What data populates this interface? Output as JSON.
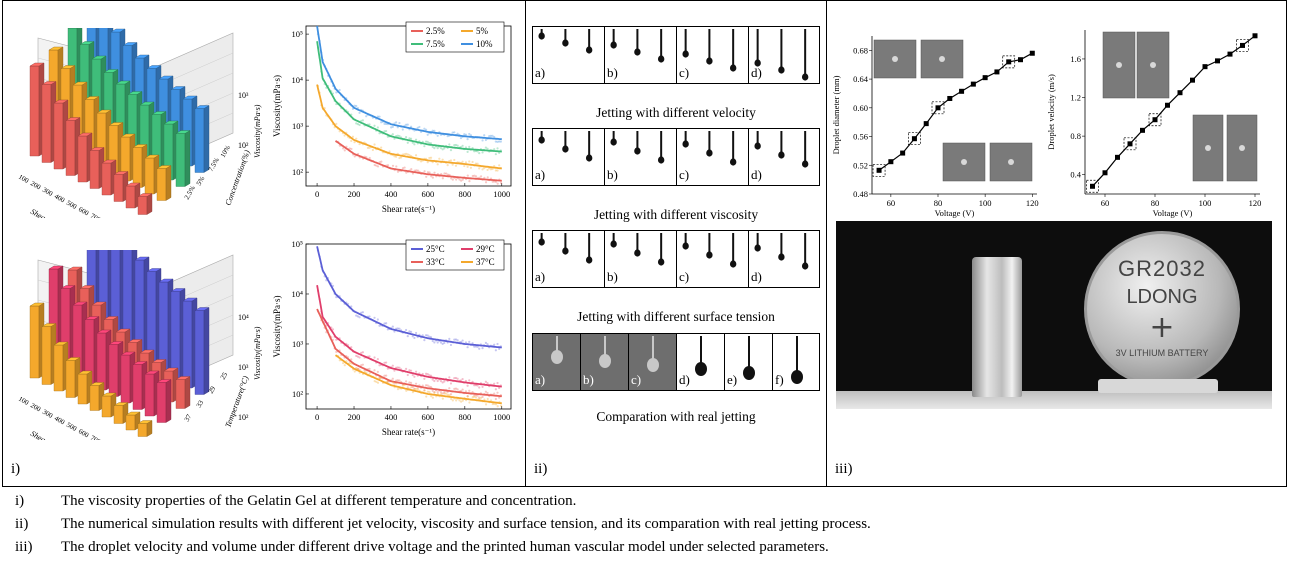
{
  "panels": [
    {
      "label": "i)"
    },
    {
      "label": "ii)"
    },
    {
      "label": "iii)"
    }
  ],
  "bar3d_top": {
    "zlabel": "Viscosity(mPa·s)",
    "ylabel": "Concentration(%)",
    "xlabel": "Shear rate(s⁻¹)",
    "zticks": [
      "10³",
      "10²"
    ],
    "xticks": [
      "100",
      "200",
      "300",
      "400",
      "500",
      "600",
      "700",
      "800",
      "900",
      "1000"
    ],
    "yticks": [
      "2.5%",
      "5%",
      "7.5%",
      "10%"
    ],
    "colors": [
      "#e8605a",
      "#f4a82c",
      "#3fbd7a",
      "#3f8fe0"
    ]
  },
  "bar3d_bottom": {
    "zlabel": "Viscosity(mPa·s)",
    "ylabel": "Temperature(°C)",
    "xlabel": "Shear rate(s⁻¹)",
    "zticks": [
      "10⁴",
      "10³",
      "10²"
    ],
    "xticks": [
      "100",
      "200",
      "300",
      "400",
      "500",
      "600",
      "700",
      "800",
      "900",
      "1000"
    ],
    "yticks": [
      "37",
      "33",
      "29",
      "25"
    ],
    "colors": [
      "#f4a82c",
      "#e03e6b",
      "#e8605a",
      "#5b5fd6"
    ]
  },
  "chart_data": [
    {
      "type": "line",
      "title": "",
      "xlabel": "Shear rate(s⁻¹)",
      "ylabel": "Viscosity(mPa·s)",
      "yscale": "log",
      "xlim": [
        -60,
        1050
      ],
      "ylim": [
        50,
        150000
      ],
      "xticks": [
        0,
        200,
        400,
        600,
        800,
        1000
      ],
      "yticks": [
        "10²",
        "10³",
        "10⁴",
        "10⁵"
      ],
      "legend": "top-right",
      "series": [
        {
          "name": "2.5%",
          "color": "#e8605a",
          "x": [
            100,
            200,
            400,
            600,
            800,
            1000
          ],
          "y": [
            480,
            250,
            120,
            90,
            75,
            65
          ]
        },
        {
          "name": "5%",
          "color": "#f4a82c",
          "x": [
            0,
            30,
            100,
            200,
            400,
            600,
            800,
            1000
          ],
          "y": [
            8000,
            2500,
            1000,
            500,
            250,
            180,
            150,
            120
          ]
        },
        {
          "name": "7.5%",
          "color": "#3fbd7a",
          "x": [
            0,
            30,
            100,
            200,
            400,
            600,
            800,
            1000
          ],
          "y": [
            70000,
            11000,
            3500,
            1400,
            600,
            400,
            320,
            280
          ]
        },
        {
          "name": "10%",
          "color": "#3f8fe0",
          "x": [
            0,
            30,
            100,
            200,
            400,
            600,
            800,
            1000
          ],
          "y": [
            150000,
            25000,
            6500,
            2500,
            1100,
            750,
            600,
            520
          ]
        }
      ]
    },
    {
      "type": "line",
      "title": "",
      "xlabel": "Shear rate(s⁻¹)",
      "ylabel": "Viscosity(mPa·s)",
      "yscale": "log",
      "xlim": [
        -60,
        1050
      ],
      "ylim": [
        50,
        100000
      ],
      "xticks": [
        0,
        200,
        400,
        600,
        800,
        1000
      ],
      "yticks": [
        "10²",
        "10³",
        "10⁴",
        "10⁵"
      ],
      "legend": "top-right",
      "series": [
        {
          "name": "25°C",
          "color": "#5b5fd6",
          "x": [
            0,
            30,
            100,
            200,
            400,
            600,
            800,
            1000
          ],
          "y": [
            90000,
            30000,
            10000,
            4500,
            2000,
            1300,
            1000,
            850
          ]
        },
        {
          "name": "29°C",
          "color": "#e03e6b",
          "x": [
            0,
            30,
            100,
            200,
            400,
            600,
            800,
            1000
          ],
          "y": [
            15000,
            3500,
            1400,
            700,
            330,
            220,
            170,
            140
          ]
        },
        {
          "name": "33°C",
          "color": "#e8605a",
          "x": [
            0,
            100,
            200,
            400,
            600,
            800,
            1000
          ],
          "y": [
            5000,
            800,
            400,
            180,
            130,
            105,
            90
          ]
        },
        {
          "name": "37°C",
          "color": "#f4a82c",
          "x": [
            100,
            200,
            400,
            600,
            800,
            1000
          ],
          "y": [
            600,
            320,
            150,
            100,
            80,
            65
          ]
        }
      ]
    },
    {
      "type": "scatter",
      "title": "",
      "xlabel": "Voltage (V)",
      "ylabel": "Droplet diameter (mm)",
      "xlim": [
        52,
        122
      ],
      "ylim": [
        0.48,
        0.7
      ],
      "xticks": [
        60,
        80,
        100,
        120
      ],
      "yticks": [
        0.48,
        0.52,
        0.56,
        0.6,
        0.64,
        0.68
      ],
      "x": [
        55,
        60,
        65,
        70,
        75,
        80,
        85,
        90,
        95,
        100,
        105,
        110,
        115,
        120
      ],
      "y": [
        0.513,
        0.525,
        0.537,
        0.557,
        0.578,
        0.6,
        0.613,
        0.623,
        0.633,
        0.642,
        0.65,
        0.664,
        0.667,
        0.676
      ],
      "fit": true
    },
    {
      "type": "scatter",
      "title": "",
      "xlabel": "Voltage (V)",
      "ylabel": "Droplet velocity (m/s)",
      "xlim": [
        52,
        122
      ],
      "ylim": [
        0.2,
        1.9
      ],
      "xticks": [
        60,
        80,
        100,
        120
      ],
      "yticks": [
        0.4,
        0.8,
        1.2,
        1.6
      ],
      "x": [
        55,
        60,
        65,
        70,
        75,
        80,
        85,
        90,
        95,
        100,
        105,
        110,
        115,
        120
      ],
      "y": [
        0.28,
        0.42,
        0.58,
        0.72,
        0.86,
        0.97,
        1.12,
        1.25,
        1.38,
        1.52,
        1.58,
        1.65,
        1.74,
        1.84
      ],
      "fit": true
    }
  ],
  "simulation": {
    "rows": [
      {
        "title": "Jetting with different velocity",
        "cells": [
          "a)",
          "b)",
          "c)",
          "d)"
        ]
      },
      {
        "title": "Jetting with different viscosity",
        "cells": [
          "a)",
          "b)",
          "c)",
          "d)"
        ]
      },
      {
        "title": "Jetting with different surface tension",
        "cells": [
          "a)",
          "b)",
          "c)",
          "d)"
        ]
      },
      {
        "title": "Comparation with real jetting",
        "cells": [
          "a)",
          "b)",
          "c)",
          "d)",
          "e)",
          "f)"
        ]
      }
    ]
  },
  "photo": {
    "coin_line1": "GR2032",
    "coin_line2": "LDONG",
    "coin_line3": "3V LITHIUM BATTERY"
  },
  "captions": [
    {
      "num": "i)",
      "text": "The viscosity properties of the Gelatin Gel at different temperature and concentration."
    },
    {
      "num": "ii)",
      "text": "The numerical simulation results with different jet velocity, viscosity and surface tension, and its comparation with real jetting process."
    },
    {
      "num": "iii)",
      "text": "The droplet velocity and volume under different drive voltage and the printed human vascular model under selected parameters."
    }
  ]
}
